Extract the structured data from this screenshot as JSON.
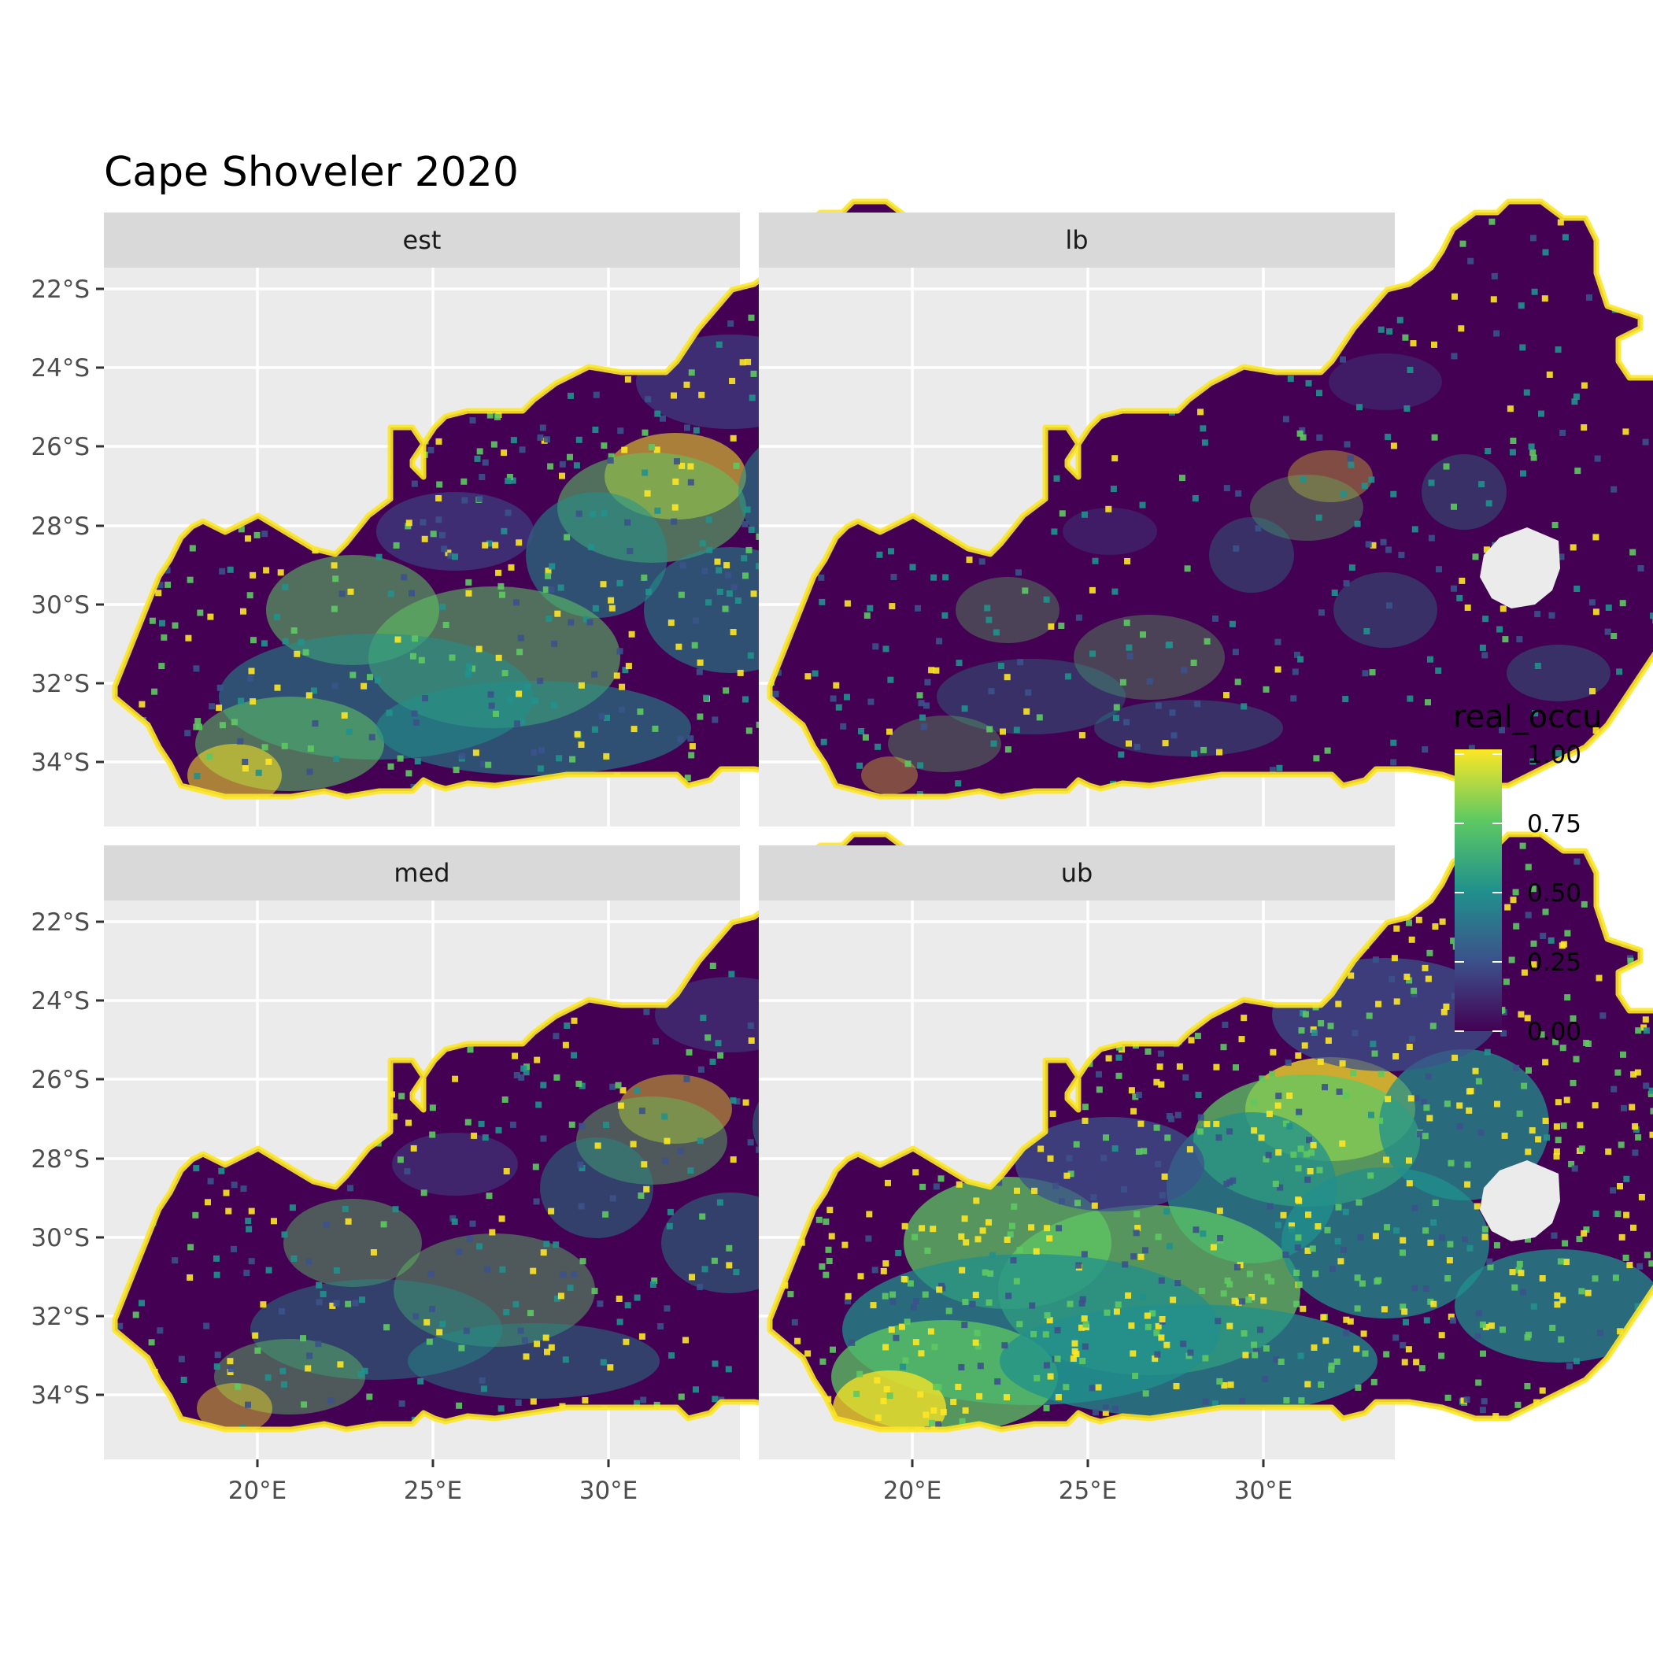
{
  "title": "Cape Shoveler 2020",
  "panels": [
    {
      "label": "est"
    },
    {
      "label": "lb"
    },
    {
      "label": "med"
    },
    {
      "label": "ub"
    }
  ],
  "axes": {
    "y_labels": [
      "22°S",
      "24°S",
      "26°S",
      "28°S",
      "30°S",
      "32°S",
      "34°S"
    ],
    "x_labels": [
      "20°E",
      "25°E",
      "30°E"
    ]
  },
  "legend": {
    "title": "real_occu",
    "labels": [
      "1.00",
      "0.75",
      "0.50",
      "0.25",
      "0.00"
    ],
    "colors": [
      "#fde725",
      "#5ec962",
      "#21918c",
      "#3b528b",
      "#440154"
    ]
  }
}
